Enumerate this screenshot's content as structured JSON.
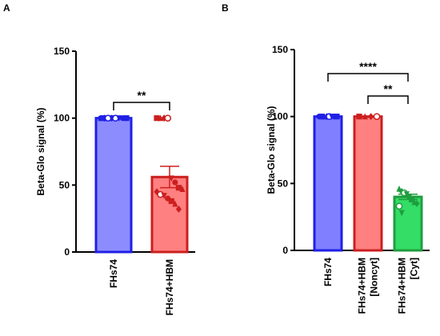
{
  "chart_data": [
    {
      "panel": "A",
      "type": "bar",
      "ylabel": "Beta-Glo signal (%)",
      "ylim": [
        0,
        150
      ],
      "yticks": [
        0,
        50,
        100,
        150
      ],
      "categories": [
        "FHs74",
        "FHs74+HBM"
      ],
      "values": [
        100,
        56
      ],
      "errors": [
        0,
        8
      ],
      "fill_colors": [
        "#8c8cff",
        "#ff8080"
      ],
      "edge_colors": [
        "#1f1fe6",
        "#cc1f1f"
      ],
      "points": [
        [
          100,
          100,
          100,
          100,
          100,
          100,
          100,
          100,
          100,
          100,
          100,
          100
        ],
        [
          100,
          100,
          100,
          100,
          55,
          52,
          48,
          47,
          45,
          43,
          42,
          40,
          38,
          36,
          32
        ]
      ],
      "significance": [
        {
          "from": 0,
          "to": 1,
          "label": "**"
        }
      ]
    },
    {
      "panel": "B",
      "type": "bar",
      "ylabel": "Beta-Glo signal (%)",
      "ylim": [
        0,
        150
      ],
      "yticks": [
        0,
        50,
        100,
        150
      ],
      "categories": [
        "FHs74",
        "FHs74+HBM [Noncyt]",
        "FHs74+HBM [Cyt]"
      ],
      "category_lines": [
        [
          "FHs74"
        ],
        [
          "FHs74+HBM",
          "[Noncyt]"
        ],
        [
          "FHs74+HBM",
          "[Cyt]"
        ]
      ],
      "values": [
        100,
        100,
        40
      ],
      "errors": [
        0,
        0,
        2
      ],
      "fill_colors": [
        "#7f7fff",
        "#ff8080",
        "#33dd66"
      ],
      "edge_colors": [
        "#1f1fe6",
        "#cc1f1f",
        "#1f9e3f"
      ],
      "points": [
        [
          100,
          100,
          100,
          100,
          100,
          100,
          100,
          100
        ],
        [
          100,
          100,
          100,
          100
        ],
        [
          46,
          44,
          43,
          42,
          40,
          38,
          36,
          35,
          33,
          28
        ]
      ],
      "significance": [
        {
          "from": 0,
          "to": 2,
          "label": "****"
        },
        {
          "from": 1,
          "to": 2,
          "label": "**"
        }
      ]
    }
  ]
}
